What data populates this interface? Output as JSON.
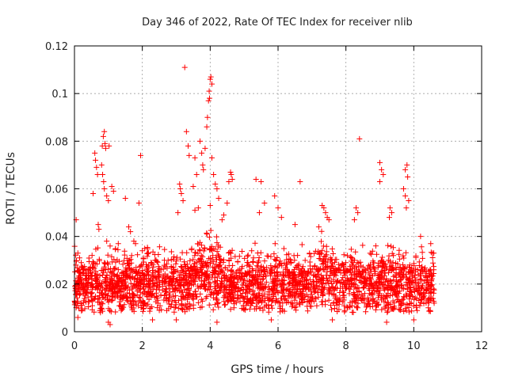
{
  "chart_data": {
    "type": "scatter",
    "title": "Day 346 of 2022, Rate Of TEC Index for receiver nlib",
    "xlabel": "GPS time / hours",
    "ylabel": "ROTI / TECUs",
    "xlim": [
      0,
      12
    ],
    "ylim": [
      0,
      0.12
    ],
    "xticks": [
      0,
      2,
      4,
      6,
      8,
      10,
      12
    ],
    "xtick_labels": [
      "0",
      "2",
      "4",
      "6",
      "8",
      "10",
      "12"
    ],
    "yticks": [
      0,
      0.02,
      0.04,
      0.06,
      0.08,
      0.1,
      0.12
    ],
    "ytick_labels": [
      "0",
      "0.02",
      "0.04",
      "0.06",
      "0.08",
      "0.1",
      "0.12"
    ],
    "grid": true,
    "marker": "+",
    "marker_color": "#ff0000",
    "series": [
      {
        "name": "ROTI",
        "points": [
          [
            0.05,
            0.047
          ],
          [
            0.1,
            0.033
          ],
          [
            0.15,
            0.031
          ],
          [
            0.2,
            0.029
          ],
          [
            0.25,
            0.027
          ],
          [
            0.6,
            0.075
          ],
          [
            0.62,
            0.072
          ],
          [
            0.65,
            0.069
          ],
          [
            0.68,
            0.066
          ],
          [
            0.55,
            0.058
          ],
          [
            0.7,
            0.045
          ],
          [
            0.72,
            0.043
          ],
          [
            0.82,
            0.078
          ],
          [
            0.85,
            0.082
          ],
          [
            0.88,
            0.084
          ],
          [
            0.9,
            0.079
          ],
          [
            0.92,
            0.077
          ],
          [
            0.8,
            0.07
          ],
          [
            0.83,
            0.066
          ],
          [
            0.86,
            0.063
          ],
          [
            0.88,
            0.06
          ],
          [
            0.95,
            0.057
          ],
          [
            1.0,
            0.055
          ],
          [
            1.02,
            0.078
          ],
          [
            1.1,
            0.061
          ],
          [
            1.15,
            0.059
          ],
          [
            0.95,
            0.038
          ],
          [
            1.05,
            0.036
          ],
          [
            1.5,
            0.056
          ],
          [
            1.6,
            0.044
          ],
          [
            1.65,
            0.042
          ],
          [
            1.75,
            0.038
          ],
          [
            1.8,
            0.037
          ],
          [
            1.95,
            0.074
          ],
          [
            1.9,
            0.054
          ],
          [
            2.0,
            0.034
          ],
          [
            3.25,
            0.111
          ],
          [
            3.3,
            0.084
          ],
          [
            3.35,
            0.078
          ],
          [
            3.38,
            0.074
          ],
          [
            3.1,
            0.062
          ],
          [
            3.12,
            0.06
          ],
          [
            3.15,
            0.058
          ],
          [
            3.2,
            0.055
          ],
          [
            3.05,
            0.05
          ],
          [
            3.55,
            0.073
          ],
          [
            3.6,
            0.066
          ],
          [
            3.5,
            0.061
          ],
          [
            3.7,
            0.08
          ],
          [
            3.75,
            0.075
          ],
          [
            3.78,
            0.07
          ],
          [
            3.8,
            0.068
          ],
          [
            3.85,
            0.077
          ],
          [
            3.9,
            0.086
          ],
          [
            3.92,
            0.09
          ],
          [
            3.95,
            0.097
          ],
          [
            3.97,
            0.101
          ],
          [
            4.0,
            0.106
          ],
          [
            4.02,
            0.107
          ],
          [
            4.05,
            0.104
          ],
          [
            3.98,
            0.098
          ],
          [
            4.05,
            0.073
          ],
          [
            4.1,
            0.066
          ],
          [
            4.15,
            0.062
          ],
          [
            4.2,
            0.06
          ],
          [
            4.25,
            0.056
          ],
          [
            4.0,
            0.053
          ],
          [
            3.65,
            0.052
          ],
          [
            3.55,
            0.051
          ],
          [
            4.6,
            0.067
          ],
          [
            4.62,
            0.066
          ],
          [
            4.65,
            0.064
          ],
          [
            4.55,
            0.063
          ],
          [
            4.5,
            0.054
          ],
          [
            4.4,
            0.049
          ],
          [
            4.35,
            0.047
          ],
          [
            5.35,
            0.064
          ],
          [
            5.5,
            0.063
          ],
          [
            5.6,
            0.054
          ],
          [
            5.45,
            0.05
          ],
          [
            5.9,
            0.057
          ],
          [
            6.0,
            0.052
          ],
          [
            6.1,
            0.048
          ],
          [
            6.65,
            0.063
          ],
          [
            6.5,
            0.045
          ],
          [
            7.3,
            0.053
          ],
          [
            7.35,
            0.052
          ],
          [
            7.4,
            0.05
          ],
          [
            7.45,
            0.048
          ],
          [
            7.5,
            0.047
          ],
          [
            7.2,
            0.044
          ],
          [
            8.4,
            0.081
          ],
          [
            8.3,
            0.052
          ],
          [
            8.35,
            0.05
          ],
          [
            8.25,
            0.047
          ],
          [
            9.0,
            0.071
          ],
          [
            9.05,
            0.068
          ],
          [
            9.1,
            0.066
          ],
          [
            9.0,
            0.063
          ],
          [
            9.3,
            0.052
          ],
          [
            9.35,
            0.05
          ],
          [
            9.28,
            0.048
          ],
          [
            9.75,
            0.068
          ],
          [
            9.8,
            0.07
          ],
          [
            9.82,
            0.065
          ],
          [
            9.7,
            0.06
          ],
          [
            9.75,
            0.057
          ],
          [
            9.85,
            0.055
          ],
          [
            9.78,
            0.052
          ],
          [
            10.2,
            0.04
          ],
          [
            10.5,
            0.037
          ],
          [
            10.55,
            0.033
          ],
          [
            0.3,
            0.018
          ],
          [
            0.5,
            0.016
          ],
          [
            0.7,
            0.019
          ],
          [
            0.9,
            0.014
          ],
          [
            1.1,
            0.02
          ],
          [
            1.3,
            0.017
          ],
          [
            1.5,
            0.015
          ],
          [
            1.7,
            0.018
          ],
          [
            1.9,
            0.013
          ],
          [
            2.1,
            0.019
          ],
          [
            2.3,
            0.016
          ],
          [
            2.5,
            0.021
          ],
          [
            2.7,
            0.014
          ],
          [
            2.9,
            0.018
          ],
          [
            3.1,
            0.017
          ],
          [
            3.3,
            0.022
          ],
          [
            3.5,
            0.015
          ],
          [
            3.7,
            0.019
          ],
          [
            3.9,
            0.024
          ],
          [
            4.1,
            0.016
          ],
          [
            4.3,
            0.02
          ],
          [
            4.5,
            0.014
          ],
          [
            4.7,
            0.018
          ],
          [
            4.9,
            0.015
          ],
          [
            5.1,
            0.019
          ],
          [
            5.3,
            0.016
          ],
          [
            5.5,
            0.02
          ],
          [
            5.7,
            0.014
          ],
          [
            5.9,
            0.018
          ],
          [
            6.1,
            0.017
          ],
          [
            6.3,
            0.015
          ],
          [
            6.5,
            0.019
          ],
          [
            6.7,
            0.016
          ],
          [
            6.9,
            0.018
          ],
          [
            7.1,
            0.014
          ],
          [
            7.3,
            0.02
          ],
          [
            7.5,
            0.017
          ],
          [
            7.7,
            0.015
          ],
          [
            7.9,
            0.019
          ],
          [
            8.1,
            0.016
          ],
          [
            8.3,
            0.018
          ],
          [
            8.5,
            0.015
          ],
          [
            8.7,
            0.02
          ],
          [
            8.9,
            0.017
          ],
          [
            9.1,
            0.014
          ],
          [
            9.3,
            0.019
          ],
          [
            9.5,
            0.016
          ],
          [
            9.7,
            0.018
          ],
          [
            9.9,
            0.015
          ],
          [
            10.1,
            0.017
          ],
          [
            10.3,
            0.016
          ],
          [
            10.5,
            0.014
          ],
          [
            10.6,
            0.012
          ],
          [
            1.0,
            0.004
          ],
          [
            1.05,
            0.003
          ],
          [
            2.3,
            0.005
          ],
          [
            3.0,
            0.005
          ],
          [
            4.2,
            0.004
          ],
          [
            5.8,
            0.005
          ],
          [
            7.6,
            0.005
          ],
          [
            9.2,
            0.004
          ],
          [
            10.0,
            0.005
          ],
          [
            0.1,
            0.006
          ]
        ]
      }
    ]
  }
}
